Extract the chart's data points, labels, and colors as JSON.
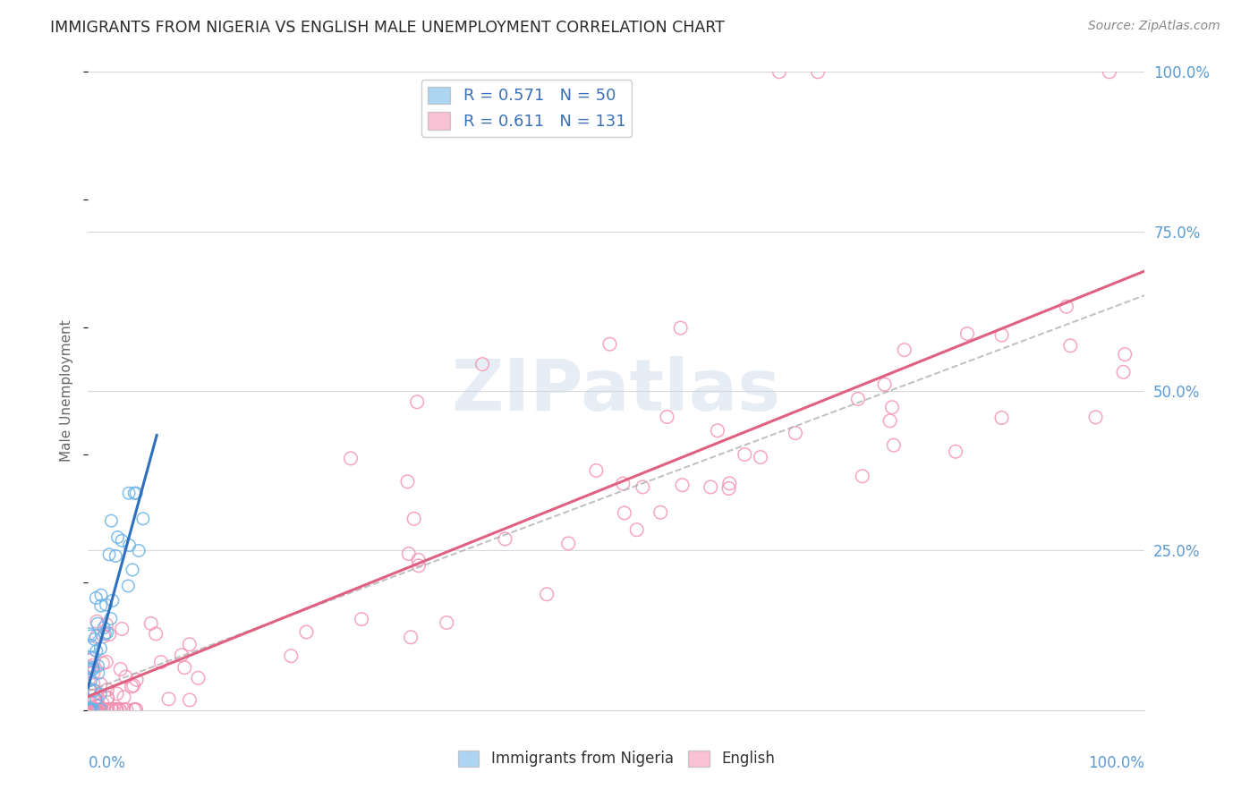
{
  "title": "IMMIGRANTS FROM NIGERIA VS ENGLISH MALE UNEMPLOYMENT CORRELATION CHART",
  "source": "Source: ZipAtlas.com",
  "ylabel": "Male Unemployment",
  "nigeria_color": "#6ab4e8",
  "english_color": "#f48fb1",
  "nigeria_R": 0.571,
  "nigeria_N": 50,
  "english_R": 0.611,
  "english_N": 131,
  "watermark": "ZIPatlas",
  "background_color": "#ffffff",
  "grid_color": "#d8d8d8",
  "axis_label_color": "#5b9bd5",
  "nigeria_trend_color": "#2e6fbe",
  "english_trend_color": "#e06080",
  "dashed_line_color": "#aaaaaa"
}
